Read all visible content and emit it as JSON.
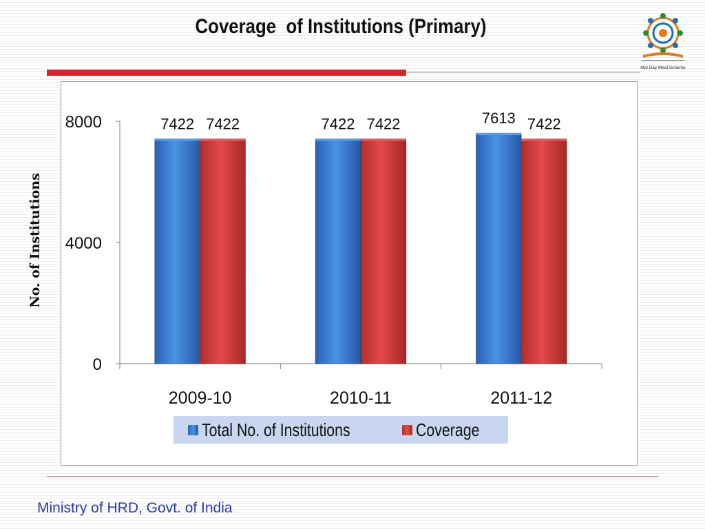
{
  "slide": {
    "title": "Coverage  of Institutions (Primary)",
    "logo_caption": "Mid Day Meal Scheme",
    "footer": "Ministry of HRD, Govt. of India"
  },
  "colors": {
    "series_total": "#3a7ed3",
    "series_coverage": "#d23c3c",
    "title_rule": "#d6222b",
    "footer_text": "#2a3aa8",
    "legend_bg": "#c8d7ef"
  },
  "chart_data": {
    "type": "bar",
    "title": "",
    "xlabel": "",
    "ylabel": "No. of Institutions",
    "ylim": [
      0,
      8000
    ],
    "yticks": [
      0,
      4000,
      8000
    ],
    "grid": false,
    "legend": "bottom",
    "categories": [
      "2009-10",
      "2010-11",
      "2011-12"
    ],
    "series": [
      {
        "name": "Total No. of Institutions",
        "values": [
          7422,
          7422,
          7613
        ]
      },
      {
        "name": "Coverage",
        "values": [
          7422,
          7422,
          7422
        ]
      }
    ],
    "data_labels": true
  }
}
